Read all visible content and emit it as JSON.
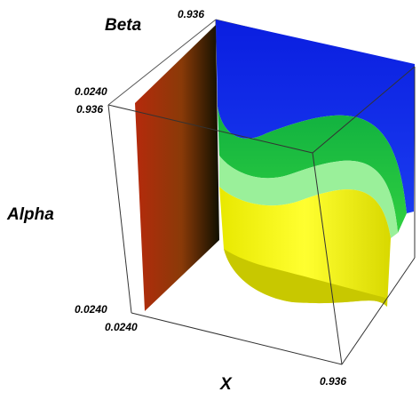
{
  "chart_data": {
    "type": "surface3d",
    "title": "",
    "axes": {
      "x": {
        "label": "X",
        "ticks": [
          "0.0240",
          "0.936"
        ],
        "range": [
          0.024,
          0.936
        ]
      },
      "y": {
        "label": "Alpha",
        "ticks": [
          "0.0240",
          "0.936"
        ],
        "range": [
          0.024,
          0.936
        ]
      },
      "z": {
        "label": "Beta",
        "ticks": [
          "0.0240",
          "0.936"
        ],
        "range": [
          0.024,
          0.936
        ]
      }
    },
    "bounding_box": true,
    "grid": false,
    "legend": "none",
    "surfaces": [
      {
        "color": "#b52a0c"
      },
      {
        "color": "#0a1ee0"
      },
      {
        "color": "#1ec81e"
      },
      {
        "color": "#90f090"
      },
      {
        "color": "#f0f010"
      }
    ]
  }
}
